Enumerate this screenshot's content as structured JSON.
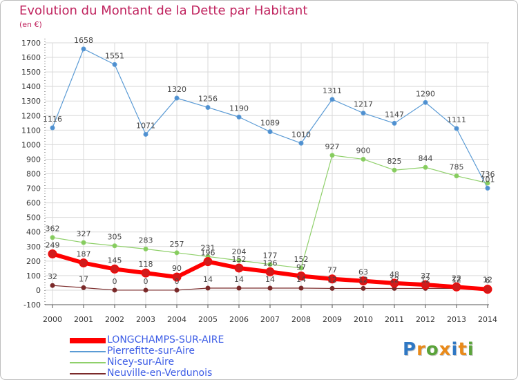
{
  "title": "Evolution du Montant de la Dette par Habitant",
  "subtitle": "(en €)",
  "logo": {
    "text": "Proxiti",
    "colors": [
      "#2f78c4",
      "#e98a1a",
      "#5aa33a",
      "#e98a1a",
      "#2f78c4",
      "#e98a1a",
      "#5aa33a"
    ]
  },
  "chart_data": {
    "type": "line",
    "x": [
      "2000",
      "2001",
      "2002",
      "2003",
      "2004",
      "2005",
      "2006",
      "2007",
      "2008",
      "2009",
      "2010",
      "2011",
      "2012",
      "2013",
      "2014"
    ],
    "ylim": [
      -100,
      1700
    ],
    "yticks": [
      -100,
      0,
      100,
      200,
      300,
      400,
      500,
      600,
      700,
      800,
      900,
      1000,
      1100,
      1200,
      1300,
      1400,
      1500,
      1600,
      1700
    ],
    "grid": true,
    "legend": "bottom-left",
    "series": [
      {
        "name": "Pierrefitte-sur-Aire",
        "color": "#5b9bd5",
        "values": [
          1116,
          1658,
          1551,
          1071,
          1320,
          1256,
          1190,
          1089,
          1010,
          1311,
          1217,
          1147,
          1290,
          1111,
          701
        ]
      },
      {
        "name": "Nicey-sur-Aire",
        "color": "#8fd06a",
        "values": [
          362,
          327,
          305,
          283,
          257,
          231,
          204,
          177,
          152,
          927,
          900,
          825,
          844,
          785,
          736
        ]
      },
      {
        "name": "Neuville-en-Verdunois",
        "color": "#7b2a2a",
        "values": [
          32,
          17,
          0,
          0,
          0,
          14,
          14,
          14,
          14,
          12,
          12,
          12,
          12,
          12,
          12
        ]
      },
      {
        "name": "LONGCHAMPS-SUR-AIRE",
        "color": "#ff0000",
        "values": [
          249,
          187,
          145,
          118,
          90,
          196,
          152,
          126,
          97,
          77,
          63,
          48,
          37,
          22,
          6
        ]
      }
    ]
  }
}
